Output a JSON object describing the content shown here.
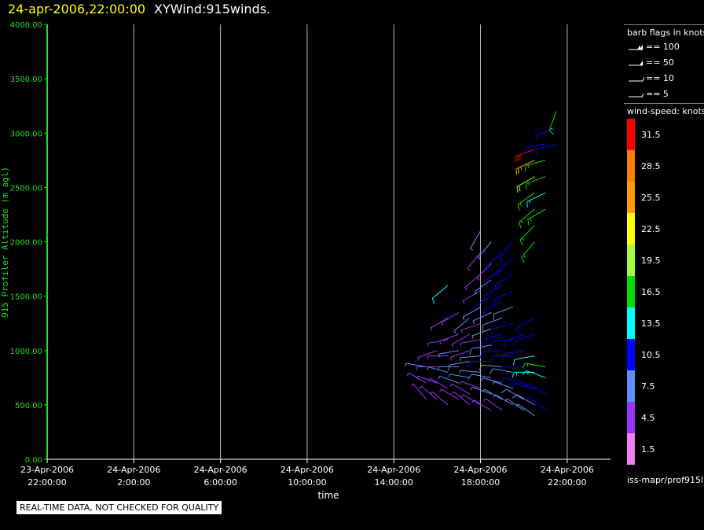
{
  "header": {
    "date_title": "24-apr-2006,22:00:00",
    "plot_title": "XYWind:915winds."
  },
  "legend": {
    "barb_title": "barb flags in knots",
    "barb_items": [
      "== 100",
      "== 50",
      "== 10",
      "== 5"
    ],
    "speed_title": "wind-speed: knots",
    "speed_colors": [
      "#ff0000",
      "#ff8000",
      "#ffa000",
      "#ffff00",
      "#a0ff40",
      "#00e000",
      "#00ffff",
      "#0000ff",
      "#5f8fff",
      "#9933ff",
      "#ee82ee"
    ],
    "speed_labels": [
      "31.5",
      "28.5",
      "25.5",
      "22.5",
      "19.5",
      "16.5",
      "13.5",
      "10.5",
      "7.5",
      "4.5",
      "1.5"
    ]
  },
  "footer": {
    "path_text": "iss-mapr/prof915l",
    "qc_note": "REAL-TIME DATA, NOT CHECKED FOR QUALITY"
  },
  "chart_data": {
    "type": "scatter",
    "title": "XYWind:915winds.",
    "xlabel": "time",
    "ylabel": "915 Profiler Altitude (m agl)",
    "ylim": [
      0,
      4000
    ],
    "yticks": [
      "0.00",
      "500.00",
      "1000.00",
      "1500.00",
      "2000.00",
      "2500.00",
      "3000.00",
      "3500.00",
      "4000.00"
    ],
    "xlim": [
      "2006-04-23 22:00",
      "2006-04-25 00:00"
    ],
    "xticks": [
      {
        "date": "23-Apr-2006",
        "time": "22:00:00"
      },
      {
        "date": "24-Apr-2006",
        "time": "2:00:00"
      },
      {
        "date": "24-Apr-2006",
        "time": "6:00:00"
      },
      {
        "date": "24-Apr-2006",
        "time": "10:00:00"
      },
      {
        "date": "24-Apr-2006",
        "time": "14:00:00"
      },
      {
        "date": "24-Apr-2006",
        "time": "18:00:00"
      },
      {
        "date": "24-Apr-2006",
        "time": "22:00:00"
      }
    ],
    "grid": "vertical",
    "profiles": [
      {
        "time": "15:30",
        "levels": [
          [
            850,
            280,
            6
          ],
          [
            700,
            300,
            5
          ],
          [
            550,
            320,
            5
          ]
        ]
      },
      {
        "time": "16:00",
        "levels": [
          [
            1000,
            250,
            5
          ],
          [
            850,
            270,
            5
          ],
          [
            700,
            290,
            4
          ],
          [
            550,
            310,
            5
          ]
        ]
      },
      {
        "time": "16:30",
        "levels": [
          [
            1600,
            230,
            12
          ],
          [
            1300,
            240,
            4
          ],
          [
            1100,
            260,
            5
          ],
          [
            950,
            270,
            5
          ],
          [
            800,
            285,
            6
          ],
          [
            650,
            300,
            5
          ],
          [
            500,
            310,
            4
          ]
        ]
      },
      {
        "time": "17:00",
        "levels": [
          [
            1350,
            240,
            5
          ],
          [
            1150,
            250,
            5
          ],
          [
            1000,
            260,
            6
          ],
          [
            850,
            270,
            7
          ],
          [
            700,
            290,
            6
          ],
          [
            550,
            300,
            5
          ]
        ]
      },
      {
        "time": "17:30",
        "levels": [
          [
            1300,
            230,
            6
          ],
          [
            1150,
            240,
            5
          ],
          [
            1000,
            250,
            5
          ],
          [
            900,
            260,
            8
          ],
          [
            750,
            280,
            6
          ],
          [
            600,
            300,
            5
          ],
          [
            500,
            310,
            4
          ]
        ]
      },
      {
        "time": "18:00",
        "levels": [
          [
            2100,
            210,
            6
          ],
          [
            1900,
            220,
            5
          ],
          [
            1700,
            230,
            5
          ],
          [
            1550,
            240,
            5
          ],
          [
            1400,
            240,
            6
          ],
          [
            1250,
            250,
            5
          ],
          [
            1100,
            260,
            5
          ],
          [
            950,
            265,
            6
          ],
          [
            800,
            275,
            6
          ],
          [
            650,
            290,
            5
          ],
          [
            500,
            300,
            4
          ]
        ]
      },
      {
        "time": "18:30",
        "levels": [
          [
            2000,
            220,
            6
          ],
          [
            1800,
            225,
            5
          ],
          [
            1650,
            235,
            6
          ],
          [
            1500,
            240,
            9
          ],
          [
            1350,
            245,
            7
          ],
          [
            1200,
            250,
            6
          ],
          [
            1050,
            260,
            8
          ],
          [
            900,
            270,
            10
          ],
          [
            750,
            280,
            8
          ],
          [
            600,
            290,
            6
          ],
          [
            450,
            300,
            5
          ]
        ]
      },
      {
        "time": "19:00",
        "levels": [
          [
            1900,
            230,
            9
          ],
          [
            1750,
            235,
            10
          ],
          [
            1600,
            240,
            11
          ],
          [
            1450,
            245,
            9
          ],
          [
            1300,
            250,
            8
          ],
          [
            1150,
            255,
            9
          ],
          [
            1000,
            265,
            10
          ],
          [
            850,
            275,
            8
          ],
          [
            700,
            285,
            7
          ],
          [
            550,
            300,
            6
          ],
          [
            450,
            305,
            5
          ]
        ]
      },
      {
        "time": "19:30",
        "levels": [
          [
            2000,
            220,
            10
          ],
          [
            1850,
            230,
            10
          ],
          [
            1700,
            240,
            9
          ],
          [
            1550,
            245,
            10
          ],
          [
            1400,
            250,
            8
          ],
          [
            1250,
            255,
            9
          ],
          [
            1100,
            265,
            11
          ],
          [
            950,
            270,
            9
          ],
          [
            800,
            280,
            8
          ],
          [
            650,
            290,
            7
          ],
          [
            500,
            300,
            6
          ]
        ]
      },
      {
        "time": "20:00",
        "levels": [
          [
            1150,
            250,
            9
          ],
          [
            1000,
            260,
            10
          ],
          [
            850,
            270,
            11
          ],
          [
            700,
            285,
            9
          ],
          [
            550,
            300,
            8
          ],
          [
            450,
            305,
            6
          ]
        ]
      },
      {
        "time": "20:30",
        "levels": [
          [
            2850,
            250,
            30
          ],
          [
            2750,
            245,
            24
          ],
          [
            2600,
            240,
            18
          ],
          [
            2450,
            235,
            15
          ],
          [
            2300,
            230,
            17
          ],
          [
            2150,
            225,
            16
          ],
          [
            2000,
            220,
            17
          ],
          [
            1300,
            240,
            10
          ],
          [
            1150,
            250,
            11
          ],
          [
            950,
            260,
            12
          ],
          [
            800,
            270,
            13
          ],
          [
            650,
            285,
            10
          ],
          [
            500,
            300,
            8
          ],
          [
            400,
            305,
            6
          ]
        ]
      },
      {
        "time": "21:00",
        "levels": [
          [
            2900,
            260,
            10
          ],
          [
            2750,
            255,
            17
          ],
          [
            2600,
            250,
            15
          ],
          [
            2450,
            245,
            14
          ],
          [
            2300,
            240,
            16
          ],
          [
            850,
            280,
            16
          ],
          [
            750,
            290,
            14
          ],
          [
            600,
            300,
            11
          ],
          [
            450,
            310,
            10
          ]
        ]
      },
      {
        "time": "21:30",
        "levels": [
          [
            3050,
            250,
            10
          ],
          [
            2900,
            255,
            11
          ],
          [
            3200,
            200,
            17
          ]
        ]
      }
    ]
  }
}
